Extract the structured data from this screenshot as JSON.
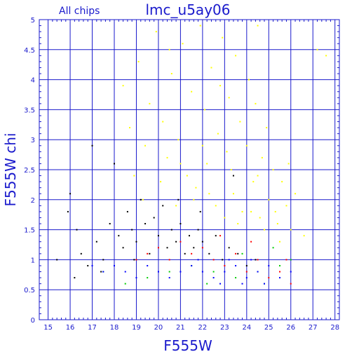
{
  "chart_data": {
    "type": "scatter",
    "title": "lmc_u5ay06",
    "subtitle": "All chips",
    "xlabel": "F555W",
    "ylabel": "F555W chi",
    "xlim": [
      14.6,
      28.2
    ],
    "ylim": [
      0,
      5
    ],
    "grid": true,
    "x_ticks": [
      "15",
      "16",
      "17",
      "18",
      "19",
      "20",
      "21",
      "22",
      "23",
      "24",
      "25",
      "26",
      "27",
      "28"
    ],
    "y_ticks": [
      "0",
      "0.5",
      "1",
      "1.5",
      "2",
      "2.5",
      "3",
      "3.5",
      "4",
      "4.5",
      "5"
    ],
    "series": [
      {
        "color": "#ffff00",
        "points": [
          [
            18.4,
            3.9
          ],
          [
            18.7,
            3.2
          ],
          [
            19.1,
            4.3
          ],
          [
            19.4,
            2.9
          ],
          [
            19.6,
            3.6
          ],
          [
            19.9,
            4.8
          ],
          [
            20.2,
            3.3
          ],
          [
            20.4,
            2.7
          ],
          [
            20.6,
            4.1
          ],
          [
            20.9,
            3.0
          ],
          [
            21.1,
            4.6
          ],
          [
            21.3,
            2.4
          ],
          [
            21.5,
            3.8
          ],
          [
            21.7,
            2.2
          ],
          [
            21.9,
            4.9
          ],
          [
            22.1,
            3.5
          ],
          [
            22.2,
            2.6
          ],
          [
            22.4,
            4.2
          ],
          [
            22.6,
            1.9
          ],
          [
            22.7,
            3.1
          ],
          [
            22.9,
            4.7
          ],
          [
            23.1,
            2.8
          ],
          [
            23.2,
            3.7
          ],
          [
            23.4,
            2.1
          ],
          [
            23.5,
            4.4
          ],
          [
            23.7,
            3.3
          ],
          [
            23.8,
            1.8
          ],
          [
            24.0,
            2.9
          ],
          [
            24.1,
            4.0
          ],
          [
            24.3,
            2.3
          ],
          [
            24.4,
            3.6
          ],
          [
            24.6,
            1.7
          ],
          [
            24.7,
            2.7
          ],
          [
            24.9,
            3.2
          ],
          [
            25.0,
            2.0
          ],
          [
            25.2,
            2.5
          ],
          [
            25.4,
            1.6
          ],
          [
            25.6,
            2.3
          ],
          [
            25.8,
            1.9
          ],
          [
            26.0,
            1.5
          ],
          [
            26.2,
            2.1
          ],
          [
            26.6,
            1.4
          ],
          [
            27.2,
            4.5
          ],
          [
            27.6,
            4.4
          ],
          [
            19.3,
            2.0
          ],
          [
            20.1,
            2.3
          ],
          [
            20.8,
            1.9
          ],
          [
            21.6,
            2.0
          ],
          [
            22.3,
            2.1
          ],
          [
            23.0,
            1.7
          ],
          [
            23.6,
            1.6
          ],
          [
            24.2,
            1.8
          ],
          [
            24.8,
            1.5
          ],
          [
            25.5,
            1.3
          ],
          [
            18.9,
            2.4
          ],
          [
            21.0,
            2.6
          ],
          [
            22.0,
            2.9
          ],
          [
            23.3,
            2.5
          ],
          [
            24.5,
            2.4
          ],
          [
            25.3,
            1.8
          ],
          [
            20.5,
            4.5
          ],
          [
            22.8,
            3.9
          ],
          [
            24.5,
            4.9
          ],
          [
            25.9,
            2.6
          ]
        ]
      },
      {
        "color": "#000000",
        "points": [
          [
            15.4,
            1.0
          ],
          [
            15.9,
            1.8
          ],
          [
            16.0,
            2.1
          ],
          [
            16.3,
            1.5
          ],
          [
            16.5,
            1.1
          ],
          [
            16.8,
            0.9
          ],
          [
            17.0,
            2.9
          ],
          [
            17.2,
            1.3
          ],
          [
            17.5,
            1.0
          ],
          [
            17.8,
            1.6
          ],
          [
            18.0,
            2.6
          ],
          [
            18.2,
            1.4
          ],
          [
            18.4,
            1.2
          ],
          [
            18.6,
            1.8
          ],
          [
            18.8,
            1.5
          ],
          [
            19.0,
            1.3
          ],
          [
            19.2,
            2.0
          ],
          [
            19.4,
            1.6
          ],
          [
            19.6,
            1.1
          ],
          [
            19.8,
            1.7
          ],
          [
            20.0,
            1.4
          ],
          [
            20.2,
            1.9
          ],
          [
            20.4,
            1.2
          ],
          [
            20.6,
            1.5
          ],
          [
            20.8,
            1.3
          ],
          [
            21.0,
            1.6
          ],
          [
            21.2,
            1.1
          ],
          [
            21.4,
            1.4
          ],
          [
            21.6,
            1.2
          ],
          [
            21.8,
            1.5
          ],
          [
            22.0,
            1.3
          ],
          [
            22.3,
            1.1
          ],
          [
            22.6,
            1.4
          ],
          [
            22.9,
            1.0
          ],
          [
            23.2,
            1.2
          ],
          [
            23.6,
            1.1
          ],
          [
            24.0,
            0.9
          ],
          [
            24.4,
            1.0
          ],
          [
            16.2,
            0.7
          ],
          [
            17.4,
            0.8
          ],
          [
            18.9,
            1.0
          ],
          [
            20.9,
            2.0
          ],
          [
            21.9,
            1.8
          ],
          [
            23.4,
            2.4
          ]
        ]
      },
      {
        "color": "#ff0000",
        "points": [
          [
            19.0,
            1.0
          ],
          [
            19.5,
            1.1
          ],
          [
            20.0,
            1.2
          ],
          [
            20.5,
            1.0
          ],
          [
            21.0,
            1.3
          ],
          [
            21.5,
            1.1
          ],
          [
            22.0,
            1.2
          ],
          [
            22.5,
            1.0
          ],
          [
            23.0,
            0.9
          ],
          [
            23.5,
            1.1
          ],
          [
            24.0,
            0.8
          ],
          [
            24.5,
            1.0
          ],
          [
            25.0,
            0.7
          ],
          [
            25.5,
            0.8
          ],
          [
            26.0,
            0.6
          ],
          [
            22.8,
            1.4
          ],
          [
            24.2,
            1.3
          ],
          [
            25.8,
            1.0
          ]
        ]
      },
      {
        "color": "#00cc00",
        "points": [
          [
            17.5,
            0.8
          ],
          [
            18.5,
            0.6
          ],
          [
            19.5,
            0.7
          ],
          [
            20.5,
            0.8
          ],
          [
            21.5,
            0.9
          ],
          [
            22.5,
            0.8
          ],
          [
            23.5,
            0.7
          ],
          [
            24.5,
            0.8
          ],
          [
            25.5,
            0.9
          ],
          [
            26.0,
            1.0
          ],
          [
            25.2,
            1.2
          ],
          [
            24.8,
            0.6
          ],
          [
            23.8,
            1.1
          ],
          [
            22.2,
            0.6
          ]
        ]
      },
      {
        "color": "#0000ff",
        "points": [
          [
            17.0,
            0.9
          ],
          [
            17.5,
            0.8
          ],
          [
            18.0,
            0.9
          ],
          [
            18.5,
            0.8
          ],
          [
            19.0,
            0.7
          ],
          [
            19.5,
            0.9
          ],
          [
            20.0,
            0.8
          ],
          [
            20.5,
            0.7
          ],
          [
            21.0,
            0.8
          ],
          [
            21.5,
            0.9
          ],
          [
            22.0,
            0.8
          ],
          [
            22.5,
            0.7
          ],
          [
            23.0,
            0.8
          ],
          [
            23.5,
            0.9
          ],
          [
            24.0,
            0.7
          ],
          [
            24.5,
            0.8
          ],
          [
            25.0,
            0.9
          ],
          [
            25.5,
            0.7
          ],
          [
            26.0,
            0.8
          ],
          [
            22.8,
            0.6
          ],
          [
            23.8,
            0.6
          ],
          [
            24.8,
            0.6
          ],
          [
            21.8,
            1.0
          ],
          [
            23.2,
            1.0
          ],
          [
            24.2,
            1.0
          ]
        ]
      }
    ]
  }
}
